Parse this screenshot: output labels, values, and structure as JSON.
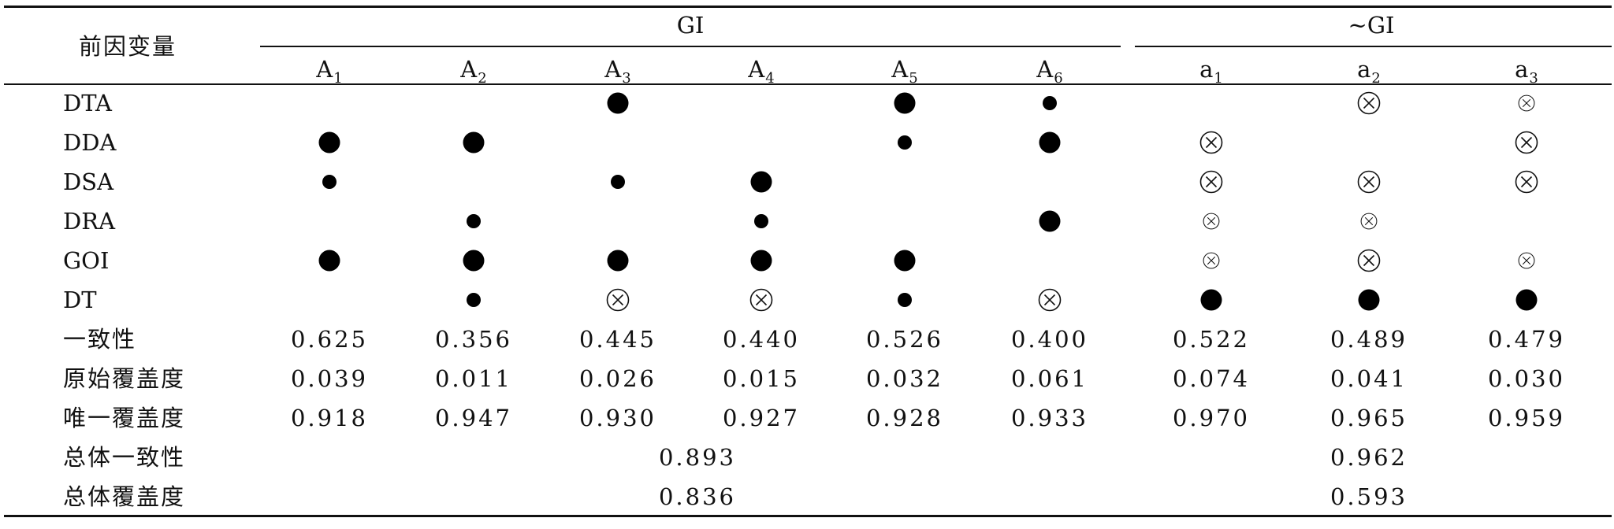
{
  "header": {
    "antecedent_label": "前因变量",
    "group_gi": "GI",
    "group_not_gi": "~GI",
    "columns": [
      {
        "base": "A",
        "sub": "1"
      },
      {
        "base": "A",
        "sub": "2"
      },
      {
        "base": "A",
        "sub": "3"
      },
      {
        "base": "A",
        "sub": "4"
      },
      {
        "base": "A",
        "sub": "5"
      },
      {
        "base": "A",
        "sub": "6"
      },
      {
        "base": "a",
        "sub": "1"
      },
      {
        "base": "a",
        "sub": "2"
      },
      {
        "base": "a",
        "sub": "3"
      }
    ]
  },
  "rows": [
    {
      "label": "DTA",
      "cells": [
        "",
        "",
        "core_present",
        "",
        "core_present",
        "peripheral_present",
        "",
        "core_absent",
        "peripheral_absent"
      ]
    },
    {
      "label": "DDA",
      "cells": [
        "core_present",
        "core_present",
        "",
        "",
        "peripheral_present",
        "core_present",
        "core_absent",
        "",
        "core_absent"
      ]
    },
    {
      "label": "DSA",
      "cells": [
        "peripheral_present",
        "",
        "peripheral_present",
        "core_present",
        "",
        "",
        "core_absent",
        "core_absent",
        "core_absent"
      ]
    },
    {
      "label": "DRA",
      "cells": [
        "",
        "peripheral_present",
        "",
        "peripheral_present",
        "",
        "core_present",
        "peripheral_absent",
        "peripheral_absent",
        ""
      ]
    },
    {
      "label": "GOI",
      "cells": [
        "core_present",
        "core_present",
        "core_present",
        "core_present",
        "core_present",
        "",
        "peripheral_absent",
        "core_absent",
        "peripheral_absent"
      ]
    },
    {
      "label": "DT",
      "cells": [
        "",
        "peripheral_present",
        "core_absent",
        "core_absent",
        "peripheral_present",
        "core_absent",
        "core_present",
        "core_present",
        "core_present"
      ]
    }
  ],
  "metrics": [
    {
      "label": "一致性",
      "values": [
        "0.625",
        "0.356",
        "0.445",
        "0.440",
        "0.526",
        "0.400",
        "0.522",
        "0.489",
        "0.479"
      ]
    },
    {
      "label": "原始覆盖度",
      "values": [
        "0.039",
        "0.011",
        "0.026",
        "0.015",
        "0.032",
        "0.061",
        "0.074",
        "0.041",
        "0.030"
      ]
    },
    {
      "label": "唯一覆盖度",
      "values": [
        "0.918",
        "0.947",
        "0.930",
        "0.927",
        "0.928",
        "0.933",
        "0.970",
        "0.965",
        "0.959"
      ]
    }
  ],
  "overall": [
    {
      "label": "总体一致性",
      "gi": "0.893",
      "not_gi": "0.962"
    },
    {
      "label": "总体覆盖度",
      "gi": "0.836",
      "not_gi": "0.593"
    }
  ],
  "symbol_types": {
    "core_present": "large-filled-circle-icon",
    "peripheral_present": "small-filled-circle-icon",
    "core_absent": "large-circled-x-icon",
    "peripheral_absent": "small-circled-x-icon"
  }
}
